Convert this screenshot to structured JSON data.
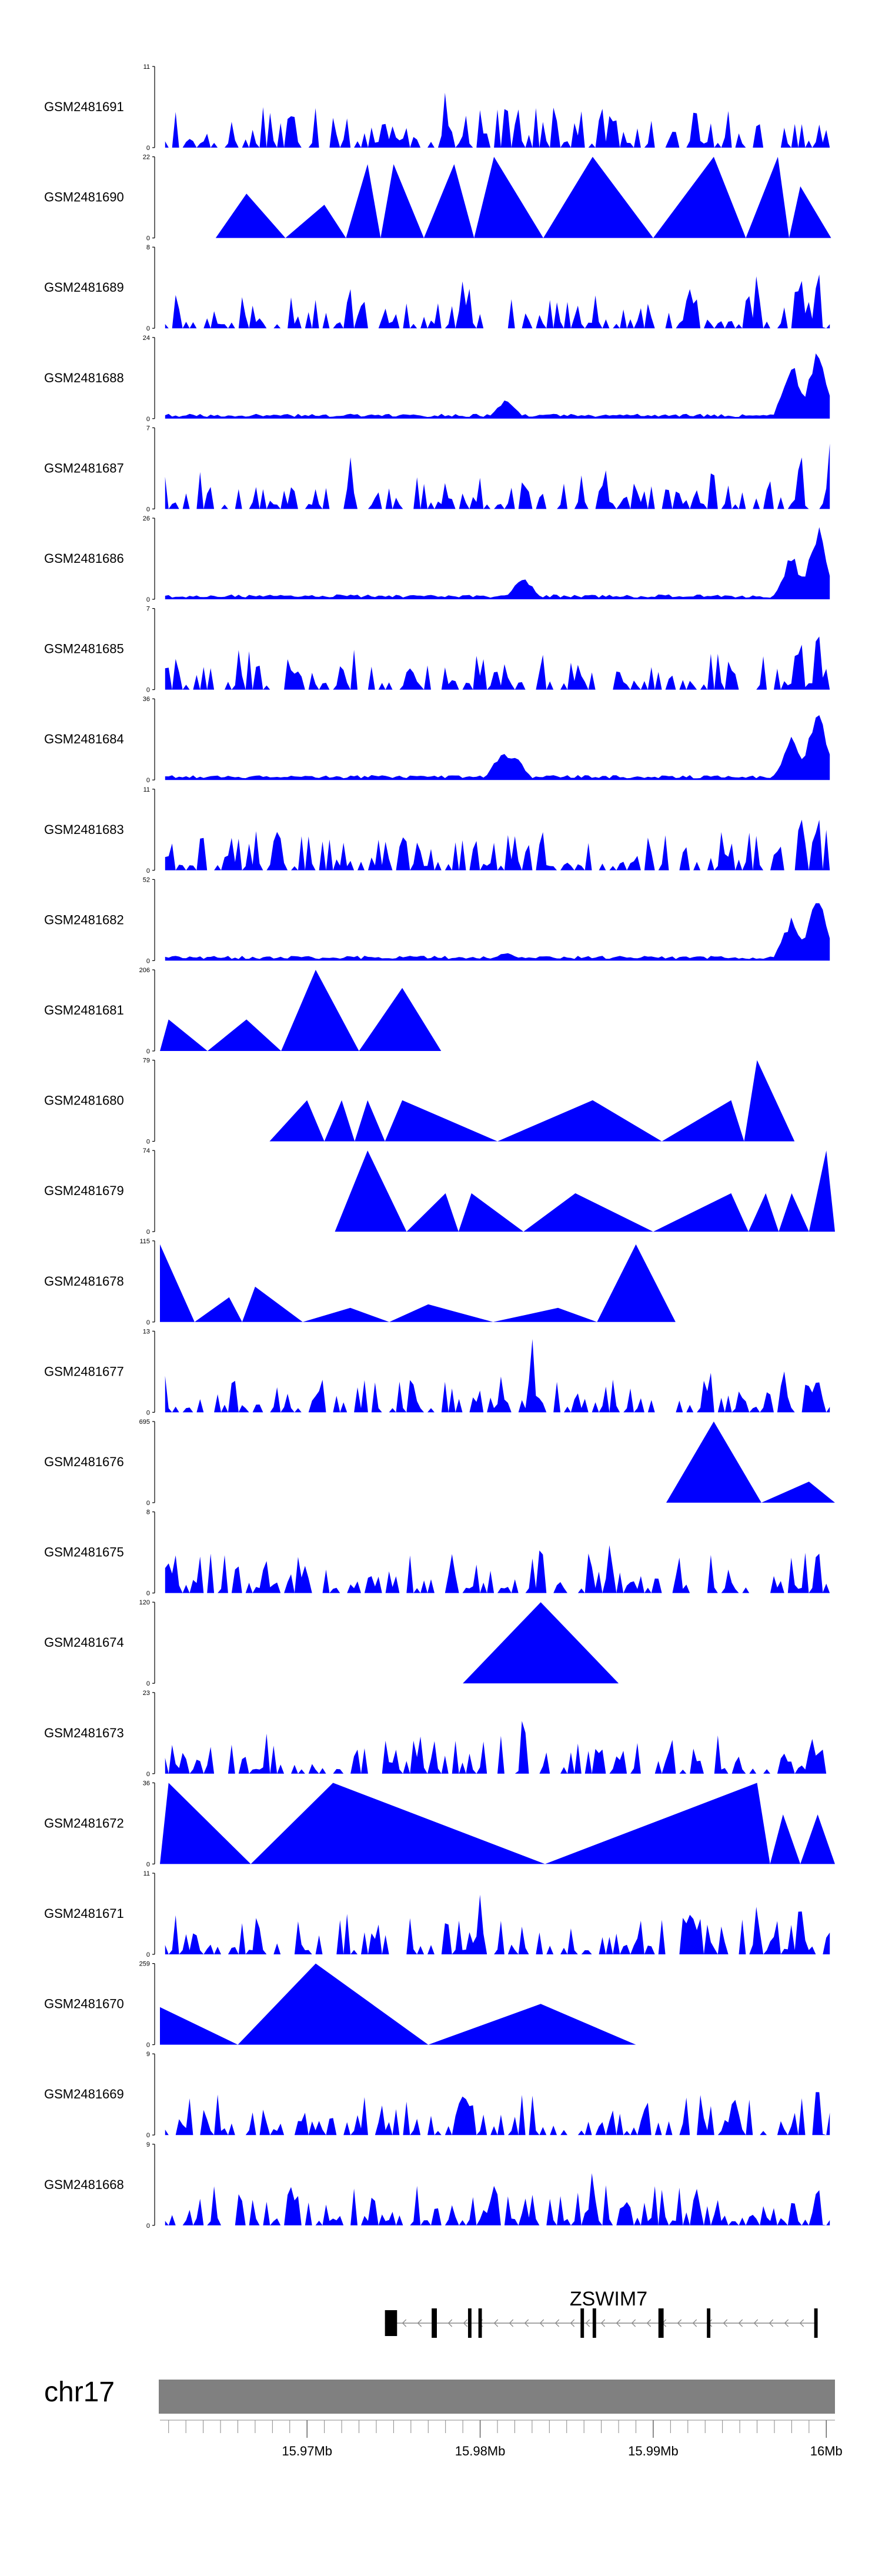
{
  "chart_data": {
    "type": "area",
    "title": "",
    "fill_color": "#0000FF",
    "x_domain": [
      15.9615,
      16.0005
    ],
    "tracks": [
      {
        "name": "GSM2481691",
        "max": 11,
        "style": "dense",
        "seed": 11,
        "peaks": [
          [
            15.978,
            9
          ],
          [
            15.9815,
            10
          ],
          [
            16.0005,
            10
          ],
          [
            15.9875,
            5
          ]
        ]
      },
      {
        "name": "GSM2481690",
        "max": 22,
        "style": "sparse",
        "seed": 12,
        "peaks": [
          [
            15.9665,
            12
          ],
          [
            15.971,
            9
          ],
          [
            15.9735,
            20
          ],
          [
            15.975,
            20
          ],
          [
            15.9785,
            20
          ],
          [
            15.9808,
            22
          ],
          [
            15.9865,
            22
          ],
          [
            15.9935,
            22
          ],
          [
            15.9972,
            22
          ],
          [
            15.9985,
            14
          ]
        ]
      },
      {
        "name": "GSM2481689",
        "max": 8,
        "style": "dense",
        "seed": 13,
        "peaks": [
          [
            15.979,
            6
          ],
          [
            15.996,
            7
          ],
          [
            15.9985,
            7
          ],
          [
            15.9995,
            8
          ]
        ]
      },
      {
        "name": "GSM2481688",
        "max": 24,
        "style": "lowtail",
        "seed": 14,
        "peaks": [
          [
            15.9815,
            6
          ],
          [
            15.998,
            18
          ],
          [
            15.9995,
            24
          ]
        ]
      },
      {
        "name": "GSM2481687",
        "max": 7,
        "style": "dense",
        "seed": 15,
        "peaks": [
          [
            15.9725,
            5
          ],
          [
            15.9985,
            7
          ],
          [
            16.0002,
            7
          ]
        ]
      },
      {
        "name": "GSM2481686",
        "max": 26,
        "style": "lowtail",
        "seed": 16,
        "peaks": [
          [
            15.9825,
            8
          ],
          [
            15.998,
            16
          ],
          [
            15.9995,
            26
          ]
        ]
      },
      {
        "name": "GSM2481685",
        "max": 7,
        "style": "dense",
        "seed": 17,
        "peaks": [
          [
            15.9985,
            6
          ],
          [
            15.9995,
            7
          ]
        ]
      },
      {
        "name": "GSM2481684",
        "max": 36,
        "style": "lowtail",
        "seed": 18,
        "peaks": [
          [
            15.9813,
            14
          ],
          [
            15.982,
            12
          ],
          [
            15.998,
            20
          ],
          [
            15.9995,
            36
          ]
        ]
      },
      {
        "name": "GSM2481683",
        "max": 11,
        "style": "dense",
        "seed": 19,
        "peaks": [
          [
            15.982,
            5
          ],
          [
            15.9985,
            11
          ],
          [
            15.9995,
            10
          ]
        ]
      },
      {
        "name": "GSM2481682",
        "max": 52,
        "style": "lowtail",
        "seed": 20,
        "peaks": [
          [
            15.9815,
            6
          ],
          [
            15.998,
            30
          ],
          [
            15.9995,
            52
          ]
        ]
      },
      {
        "name": "GSM2481681",
        "max": 206,
        "style": "sparse",
        "seed": 21,
        "peaks": [
          [
            15.962,
            80
          ],
          [
            15.9665,
            80
          ],
          [
            15.9705,
            206
          ],
          [
            15.9755,
            160
          ]
        ]
      },
      {
        "name": "GSM2481680",
        "max": 79,
        "style": "sparse",
        "seed": 22,
        "peaks": [
          [
            15.97,
            40
          ],
          [
            15.972,
            40
          ],
          [
            15.9735,
            40
          ],
          [
            15.9755,
            40
          ],
          [
            15.9865,
            40
          ],
          [
            15.9945,
            40
          ],
          [
            15.996,
            79
          ]
        ]
      },
      {
        "name": "GSM2481679",
        "max": 74,
        "style": "sparse",
        "seed": 23,
        "peaks": [
          [
            15.9735,
            74
          ],
          [
            15.978,
            35
          ],
          [
            15.9795,
            35
          ],
          [
            15.9855,
            35
          ],
          [
            15.9945,
            35
          ],
          [
            15.9965,
            35
          ],
          [
            15.998,
            35
          ],
          [
            16.0,
            74
          ]
        ]
      },
      {
        "name": "GSM2481678",
        "max": 115,
        "style": "sparse",
        "seed": 24,
        "peaks": [
          [
            15.9615,
            110
          ],
          [
            15.9655,
            35
          ],
          [
            15.967,
            50
          ],
          [
            15.9725,
            20
          ],
          [
            15.977,
            25
          ],
          [
            15.9845,
            20
          ],
          [
            15.989,
            110
          ]
        ]
      },
      {
        "name": "GSM2481677",
        "max": 13,
        "style": "dense",
        "seed": 25,
        "peaks": [
          [
            15.983,
            13
          ],
          [
            15.995,
            5
          ],
          [
            15.9975,
            9
          ],
          [
            15.9995,
            7
          ]
        ]
      },
      {
        "name": "GSM2481676",
        "max": 695,
        "style": "sparse",
        "seed": 26,
        "peaks": [
          [
            15.9935,
            695
          ],
          [
            15.999,
            180
          ]
        ]
      },
      {
        "name": "GSM2481675",
        "max": 8,
        "style": "dense",
        "seed": 27,
        "peaks": [
          [
            15.9835,
            7
          ],
          [
            15.9875,
            7
          ],
          [
            15.9995,
            6
          ]
        ]
      },
      {
        "name": "GSM2481674",
        "max": 120,
        "style": "sparse",
        "seed": 28,
        "peaks": [
          [
            15.9835,
            120
          ]
        ]
      },
      {
        "name": "GSM2481673",
        "max": 23,
        "style": "dense",
        "seed": 29,
        "peaks": [
          [
            15.9825,
            22
          ],
          [
            15.9975,
            8
          ],
          [
            15.9995,
            9
          ]
        ]
      },
      {
        "name": "GSM2481672",
        "max": 36,
        "style": "sparse",
        "seed": 30,
        "peaks": [
          [
            15.962,
            36
          ],
          [
            15.9715,
            36
          ],
          [
            15.996,
            36
          ],
          [
            15.9975,
            22
          ],
          [
            15.9995,
            22
          ]
        ]
      },
      {
        "name": "GSM2481671",
        "max": 11,
        "style": "dense",
        "seed": 31,
        "peaks": [
          [
            15.98,
            9
          ],
          [
            15.996,
            8
          ],
          [
            15.9985,
            10
          ]
        ]
      },
      {
        "name": "GSM2481670",
        "max": 259,
        "style": "sparse",
        "seed": 32,
        "peaks": [
          [
            15.9615,
            120
          ],
          [
            15.9705,
            259
          ],
          [
            15.9835,
            130
          ]
        ]
      },
      {
        "name": "GSM2481669",
        "max": 9,
        "style": "dense",
        "seed": 33,
        "peaks": [
          [
            15.9995,
            9
          ]
        ]
      },
      {
        "name": "GSM2481668",
        "max": 9,
        "style": "dense",
        "seed": 34,
        "peaks": [
          [
            15.969,
            7
          ],
          [
            15.9865,
            7
          ],
          [
            15.9995,
            7
          ]
        ]
      }
    ],
    "gene": {
      "name": "ZSWIM7",
      "start": 15.9745,
      "end": 15.9995,
      "strand": "-",
      "exons": [
        [
          15.9745,
          15.9752
        ],
        [
          15.9772,
          15.9775
        ],
        [
          15.9793,
          15.9795
        ],
        [
          15.9799,
          15.9801
        ],
        [
          15.9858,
          15.986
        ],
        [
          15.9865,
          15.9867
        ],
        [
          15.9903,
          15.9906
        ],
        [
          15.9931,
          15.9933
        ],
        [
          15.9993,
          15.9995
        ]
      ]
    },
    "chromosome": "chr17",
    "axis": {
      "ticks": [
        15.97,
        15.98,
        15.99,
        16.0
      ],
      "tick_labels": [
        "15.97Mb",
        "15.98Mb",
        "15.99Mb",
        "16Mb"
      ],
      "minor_step": 0.001
    }
  }
}
